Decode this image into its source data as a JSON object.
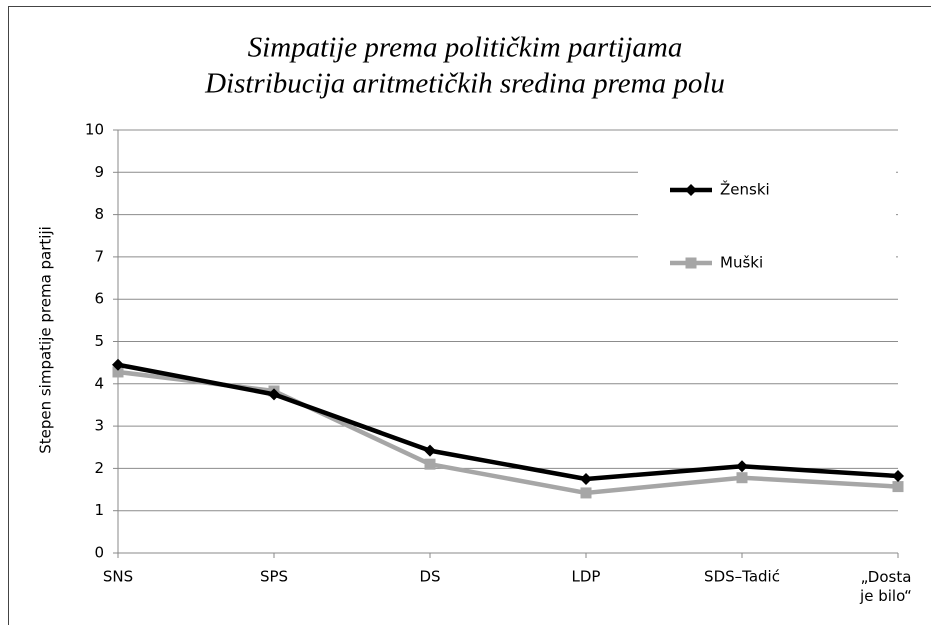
{
  "chart_data": {
    "type": "line",
    "title": "Simpatije prema političkim partijama",
    "subtitle": "Distribucija aritmetičkih sredina prema polu",
    "y_label": "Stepen simpatije prema partiji",
    "categories": [
      "SNS",
      "SPS",
      "DS",
      "LDP",
      "SDS–Tadić",
      "„Dosta je bilo“"
    ],
    "series": [
      {
        "name": "Ženski",
        "color": "#000000",
        "marker": "diamond",
        "values": [
          4.45,
          3.75,
          2.42,
          1.75,
          2.05,
          1.82
        ]
      },
      {
        "name": "Muški",
        "color": "#a6a6a6",
        "marker": "square",
        "values": [
          4.28,
          3.83,
          2.1,
          1.42,
          1.78,
          1.57
        ]
      }
    ],
    "ylim": [
      0,
      10
    ],
    "yticks": [
      0,
      1,
      2,
      3,
      4,
      5,
      6,
      7,
      8,
      9,
      10
    ],
    "grid": true,
    "legend": "upper right"
  }
}
